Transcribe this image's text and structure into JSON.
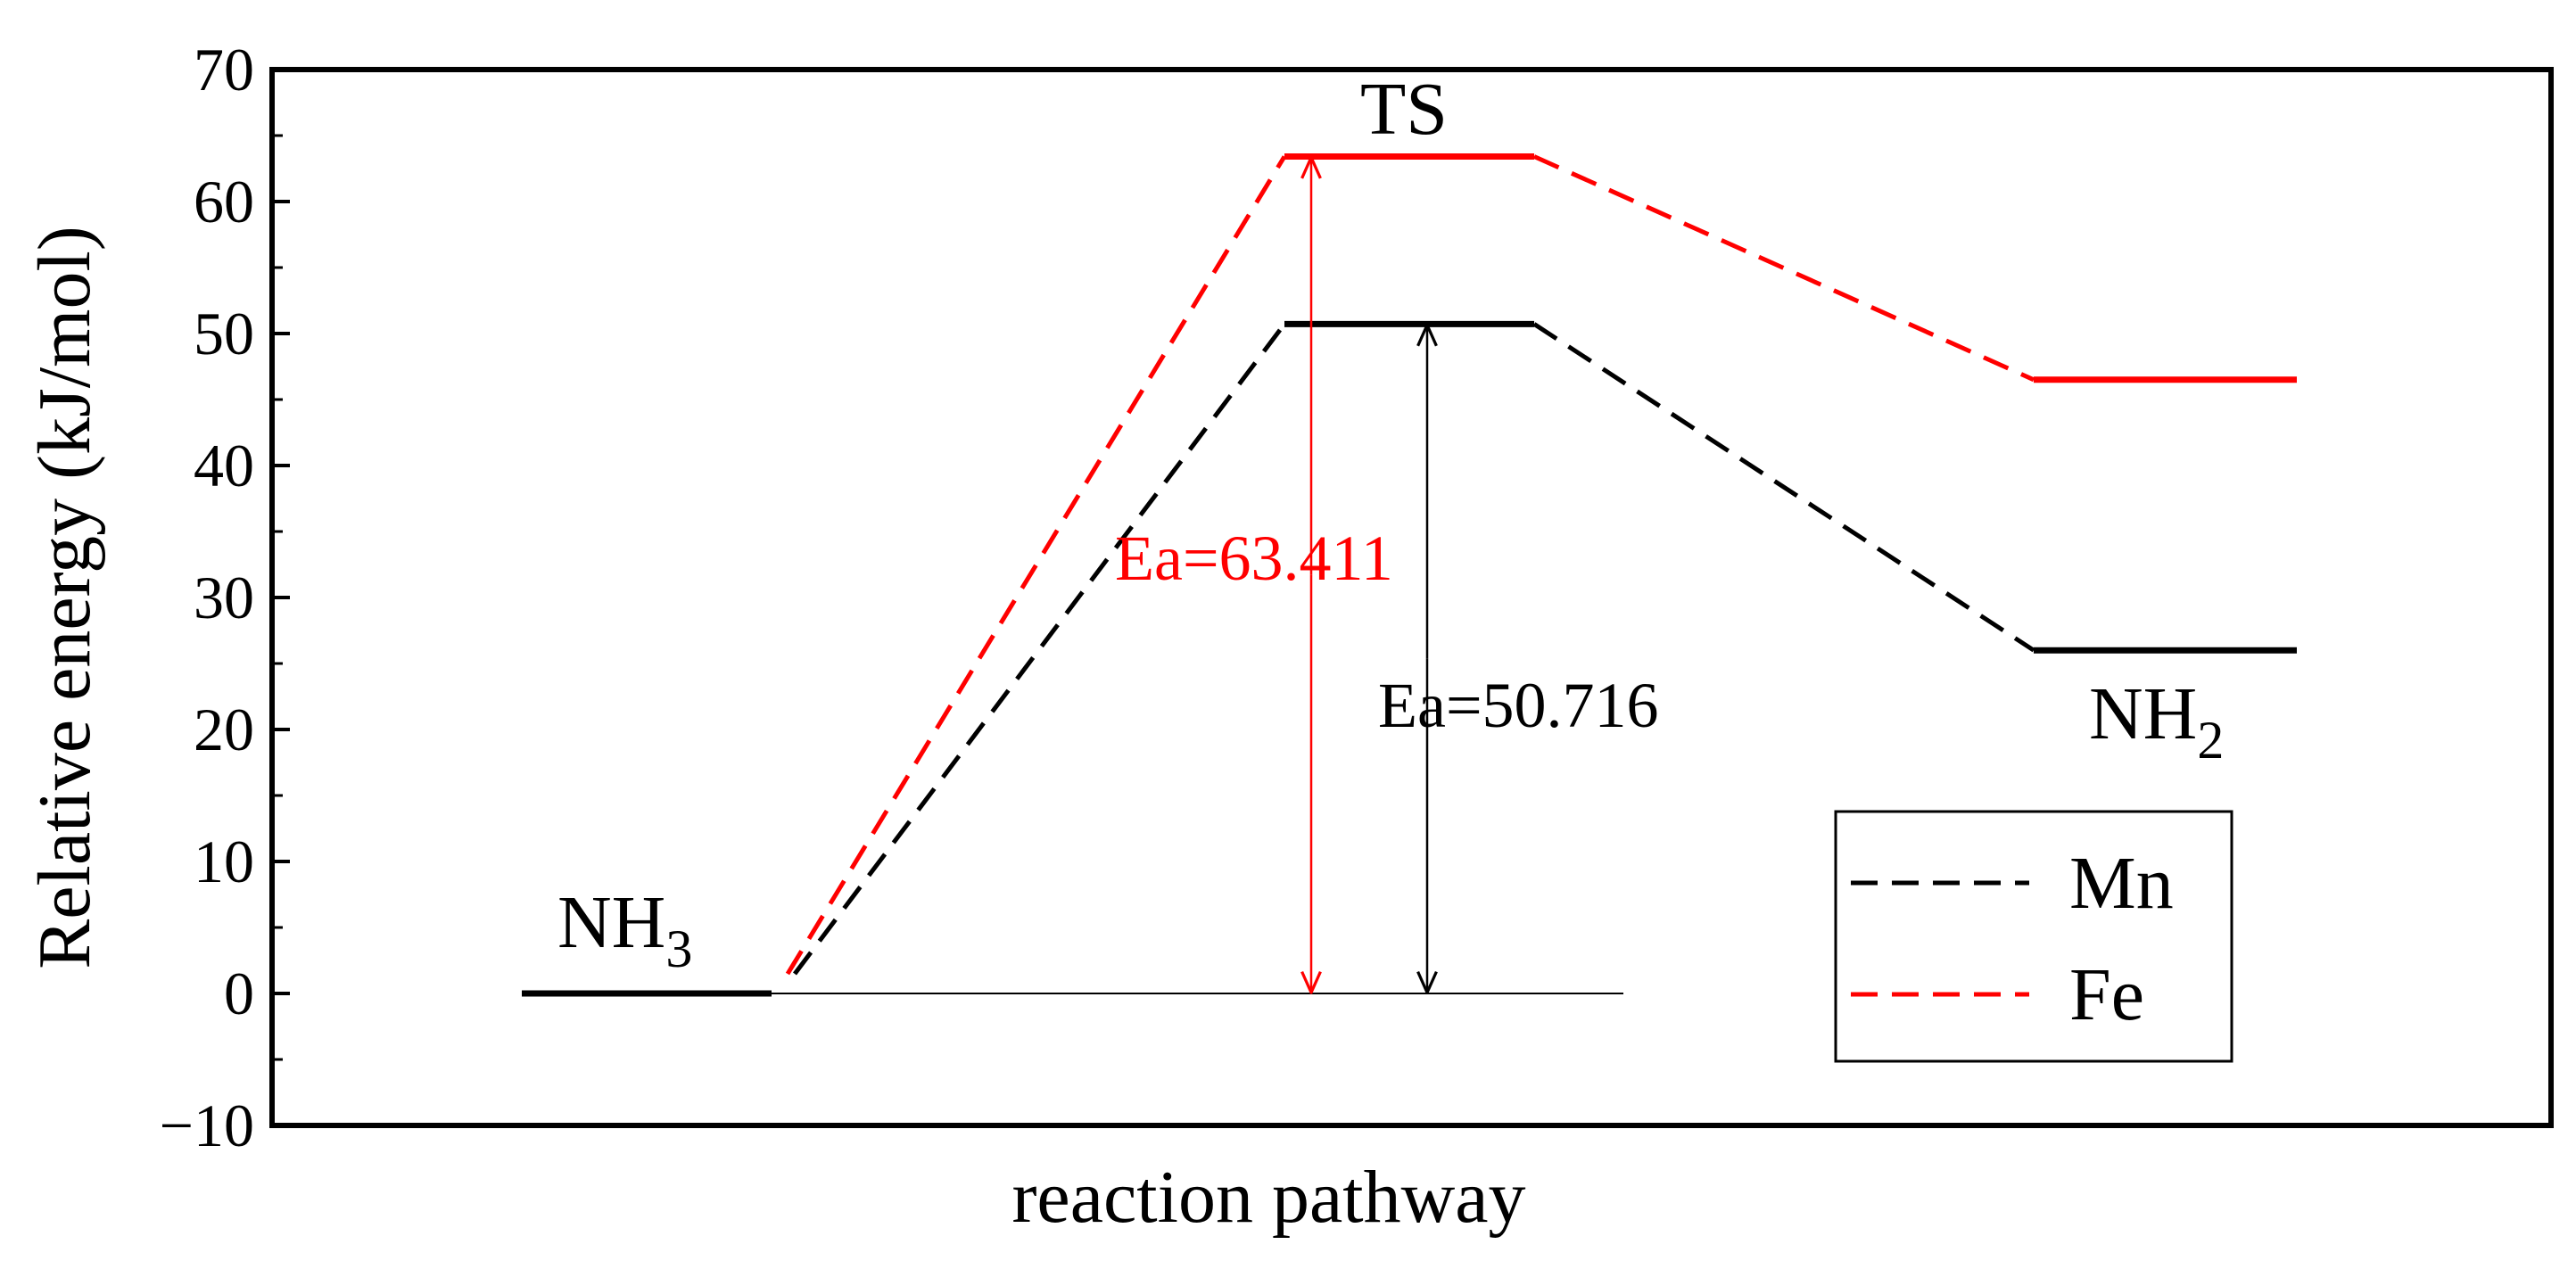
{
  "chart_data": {
    "type": "line",
    "xlabel": "reaction pathway",
    "ylabel": "Relative energy (kJ/mol)",
    "ylim": [
      -10,
      70
    ],
    "yticks": [
      -10,
      0,
      10,
      20,
      30,
      40,
      50,
      60,
      70
    ],
    "ytick_labels": [
      "−10",
      "0",
      "10",
      "20",
      "30",
      "40",
      "50",
      "60",
      "70"
    ],
    "grid": false,
    "legend_position": "bottom-right",
    "states": [
      {
        "name": "NH3",
        "label_main": "NH",
        "label_sub": "3"
      },
      {
        "name": "TS",
        "label_main": "TS",
        "label_sub": ""
      },
      {
        "name": "NH2",
        "label_main": "NH",
        "label_sub": "2"
      }
    ],
    "series": [
      {
        "name": "Mn",
        "color": "#000000",
        "energies": [
          0,
          50.716,
          26.0
        ],
        "activation_label": "Ea=50.716"
      },
      {
        "name": "Fe",
        "color": "#ff0000",
        "energies": [
          0,
          63.411,
          46.5
        ],
        "activation_label": "Ea=63.411"
      }
    ]
  }
}
